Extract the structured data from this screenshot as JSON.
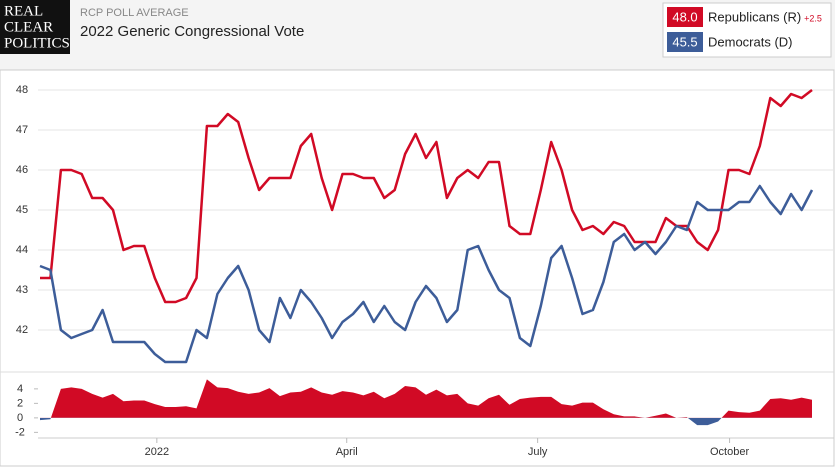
{
  "header": {
    "logo": [
      "REAL",
      "CLEAR",
      "POLITICS"
    ],
    "kicker": "RCP POLL AVERAGE",
    "title": "2022 Generic Congressional Vote"
  },
  "chart_data": [
    {
      "type": "line",
      "series": [
        {
          "name": "Republicans (R)",
          "color": "#d10a25",
          "current": {
            "value": 48,
            "label": "48.0"
          },
          "lead": {
            "value": 2.5,
            "label": "+2.5"
          },
          "values": [
            43.3,
            43.3,
            46.0,
            46.0,
            45.9,
            45.3,
            45.3,
            45.0,
            44.0,
            44.1,
            44.1,
            43.3,
            42.7,
            42.7,
            42.8,
            43.3,
            47.1,
            47.1,
            47.4,
            47.2,
            46.3,
            45.5,
            45.8,
            45.8,
            45.8,
            46.6,
            46.9,
            45.8,
            45.0,
            45.9,
            45.9,
            45.8,
            45.8,
            45.3,
            45.5,
            46.4,
            46.9,
            46.3,
            46.7,
            45.3,
            45.8,
            46.0,
            45.8,
            46.2,
            46.2,
            44.6,
            44.4,
            44.4,
            45.5,
            46.7,
            46.0,
            45.0,
            44.5,
            44.6,
            44.4,
            44.7,
            44.6,
            44.2,
            44.2,
            44.2,
            44.8,
            44.6,
            44.6,
            44.2,
            44.0,
            44.5,
            46.0,
            46.0,
            45.9,
            46.6,
            47.8,
            47.6,
            47.9,
            47.8,
            48.0
          ]
        },
        {
          "name": "Democrats (D)",
          "color": "#3d5d99",
          "current": {
            "value": 45.5,
            "label": "45.5"
          },
          "values": [
            43.6,
            43.5,
            42.0,
            41.8,
            41.9,
            42.0,
            42.5,
            41.7,
            41.7,
            41.7,
            41.7,
            41.4,
            41.2,
            41.2,
            41.2,
            42.0,
            41.8,
            42.9,
            43.3,
            43.6,
            43.0,
            42.0,
            41.7,
            42.8,
            42.3,
            43.0,
            42.7,
            42.3,
            41.8,
            42.2,
            42.4,
            42.7,
            42.2,
            42.6,
            42.2,
            42.0,
            42.7,
            43.1,
            42.8,
            42.2,
            42.5,
            44.0,
            44.1,
            43.5,
            43.0,
            42.8,
            41.8,
            41.6,
            42.6,
            43.8,
            44.1,
            43.3,
            42.4,
            42.5,
            43.2,
            44.2,
            44.4,
            44.0,
            44.2,
            43.9,
            44.2,
            44.6,
            44.5,
            45.2,
            45.0,
            45.0,
            45.0,
            45.2,
            45.2,
            45.6,
            45.2,
            44.9,
            45.4,
            45.0,
            45.5
          ]
        }
      ],
      "ylim": [
        40.95,
        48.5
      ],
      "yticks": [
        42,
        43,
        44,
        45,
        46,
        47,
        48
      ],
      "grid": true
    },
    {
      "type": "area",
      "color": "#d10a25",
      "negative_color": "#3d5d99",
      "values": [
        -0.3,
        -0.2,
        4.0,
        4.2,
        4.0,
        3.3,
        2.8,
        3.3,
        2.3,
        2.4,
        2.4,
        1.9,
        1.5,
        1.5,
        1.6,
        1.3,
        5.3,
        4.2,
        4.1,
        3.6,
        3.3,
        3.5,
        4.1,
        3.0,
        3.5,
        3.6,
        4.2,
        3.5,
        3.2,
        3.7,
        3.5,
        3.1,
        3.6,
        2.7,
        3.3,
        4.4,
        4.2,
        3.2,
        3.9,
        3.1,
        3.3,
        2.0,
        1.7,
        2.7,
        3.2,
        1.8,
        2.6,
        2.8,
        2.9,
        2.9,
        1.9,
        1.7,
        2.1,
        2.1,
        1.2,
        0.5,
        0.2,
        0.2,
        0.0,
        0.3,
        0.6,
        0.0,
        0.1,
        -1.0,
        -1.0,
        -0.5,
        1.0,
        0.8,
        0.7,
        1.0,
        2.6,
        2.7,
        2.5,
        2.8,
        2.5
      ],
      "ylim": [
        -2.5,
        5.5
      ],
      "yticks": [
        -2,
        0,
        2,
        4
      ],
      "xticks": [
        {
          "value": 11.2,
          "label": "2022"
        },
        {
          "value": 29.4,
          "label": "April"
        },
        {
          "value": 47.7,
          "label": "July"
        },
        {
          "value": 66.1,
          "label": "October"
        }
      ]
    }
  ]
}
